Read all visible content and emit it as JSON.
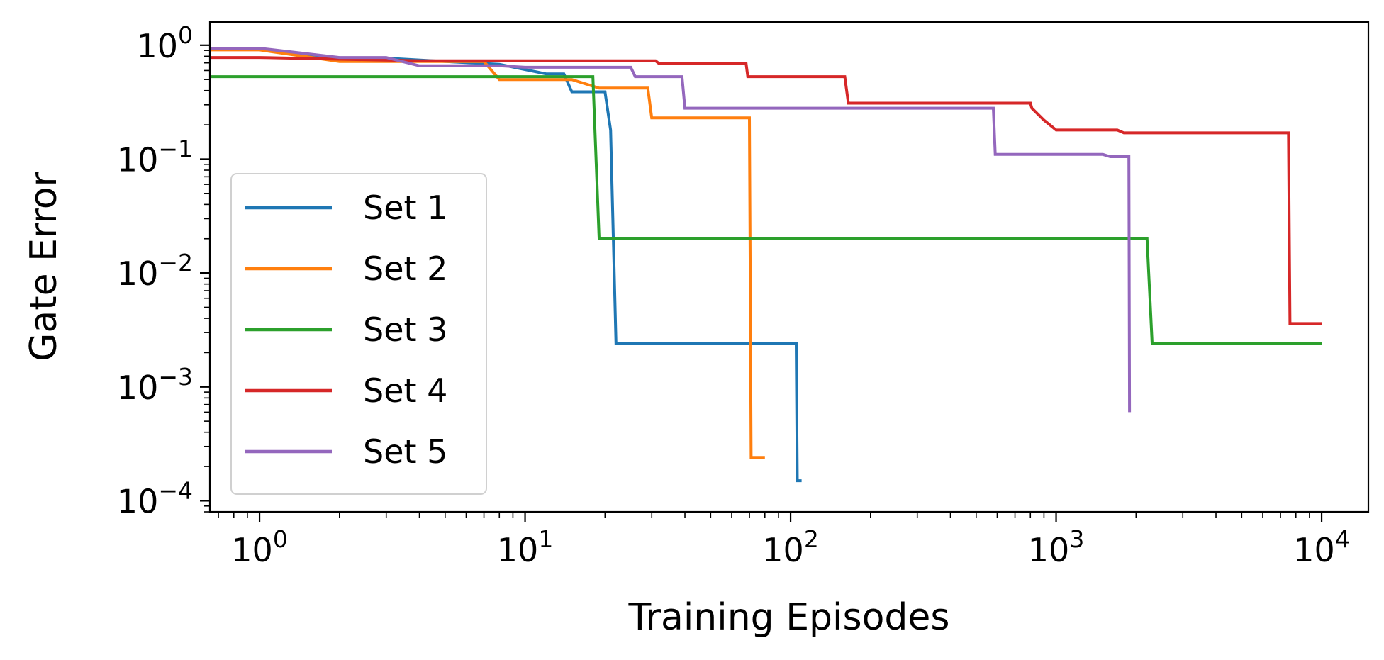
{
  "chart_data": {
    "type": "line",
    "xlabel": "Training Episodes",
    "ylabel": "Gate Error",
    "xscale": "log",
    "yscale": "log",
    "xlim": [
      0.65,
      15000
    ],
    "ylim": [
      8e-05,
      1.6
    ],
    "grid": false,
    "legend_position": "lower-left",
    "x_ticks": [
      {
        "base": "10",
        "exp": "0",
        "value": 1
      },
      {
        "base": "10",
        "exp": "1",
        "value": 10
      },
      {
        "base": "10",
        "exp": "2",
        "value": 100
      },
      {
        "base": "10",
        "exp": "3",
        "value": 1000
      },
      {
        "base": "10",
        "exp": "4",
        "value": 10000
      }
    ],
    "y_ticks": [
      {
        "base": "10",
        "exp": "0",
        "value": 1
      },
      {
        "base": "10",
        "exp": "−1",
        "value": 0.1
      },
      {
        "base": "10",
        "exp": "−2",
        "value": 0.01
      },
      {
        "base": "10",
        "exp": "−3",
        "value": 0.001
      },
      {
        "base": "10",
        "exp": "−4",
        "value": 0.0001
      }
    ],
    "series": [
      {
        "name": "Set 1",
        "color": "#1f77b4",
        "x": [
          0.6,
          1,
          2,
          3,
          5,
          8,
          12,
          14,
          15,
          20,
          21,
          22,
          105,
          106,
          110
        ],
        "y": [
          0.93,
          0.93,
          0.77,
          0.77,
          0.72,
          0.68,
          0.56,
          0.56,
          0.39,
          0.39,
          0.18,
          0.0024,
          0.0024,
          0.00015,
          0.00015
        ]
      },
      {
        "name": "Set 2",
        "color": "#ff7f0e",
        "x": [
          0.6,
          1,
          2,
          3,
          5,
          7,
          8,
          10,
          15,
          19,
          29,
          30,
          70,
          71,
          80
        ],
        "y": [
          0.91,
          0.91,
          0.72,
          0.72,
          0.72,
          0.72,
          0.5,
          0.5,
          0.5,
          0.42,
          0.42,
          0.23,
          0.23,
          0.00024,
          0.00024
        ]
      },
      {
        "name": "Set 3",
        "color": "#2ca02c",
        "x": [
          0.6,
          17,
          18,
          19,
          2200,
          2300,
          10000
        ],
        "y": [
          0.53,
          0.53,
          0.53,
          0.02,
          0.02,
          0.0024,
          0.0024
        ]
      },
      {
        "name": "Set 4",
        "color": "#d62728",
        "x": [
          0.6,
          1,
          4,
          10,
          31,
          32,
          68,
          69,
          160,
          165,
          800,
          810,
          900,
          1000,
          1700,
          1800,
          7500,
          7600,
          10000
        ],
        "y": [
          0.78,
          0.78,
          0.73,
          0.73,
          0.73,
          0.69,
          0.69,
          0.53,
          0.53,
          0.31,
          0.31,
          0.28,
          0.22,
          0.18,
          0.18,
          0.17,
          0.17,
          0.0036,
          0.0036
        ]
      },
      {
        "name": "Set 5",
        "color": "#9467bd",
        "x": [
          0.6,
          1,
          2,
          3,
          4,
          8,
          10,
          25,
          26,
          39,
          40,
          580,
          590,
          1500,
          1600,
          1880,
          1890
        ],
        "y": [
          0.94,
          0.94,
          0.78,
          0.78,
          0.66,
          0.66,
          0.64,
          0.64,
          0.53,
          0.53,
          0.28,
          0.28,
          0.11,
          0.11,
          0.105,
          0.105,
          0.0006
        ]
      }
    ]
  }
}
